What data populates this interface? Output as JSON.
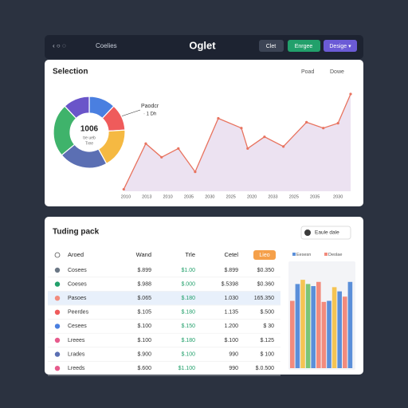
{
  "topbar": {
    "nav": "Coelies",
    "title": "Oglet",
    "buttons": [
      "Clet",
      "Enrgee",
      "Desige ▾"
    ]
  },
  "selection_card": {
    "title": "Selection",
    "actions": [
      "Poad",
      "Dowe"
    ],
    "donut": {
      "type": "pie",
      "center_label": "1006",
      "center_sublabels": [
        "tre ueb",
        "Tree"
      ],
      "values": [
        12,
        12,
        18,
        22,
        24,
        12
      ],
      "colors": [
        "#4a7fe0",
        "#ef5b5b",
        "#f5b942",
        "#5b6fb3",
        "#3fb36b",
        "#6a55c9"
      ]
    },
    "annotation": [
      "Paodcr",
      "· 1 Dh"
    ],
    "line_chart": {
      "type": "line",
      "color": "#e8735f",
      "fill": "#ece2f1",
      "x": [
        0.2,
        1.25,
        2.0,
        2.8,
        3.6,
        4.7,
        5.8,
        6.1,
        6.9,
        7.8,
        8.9,
        9.7,
        10.4,
        11
      ],
      "values": [
        2,
        49,
        35,
        44,
        20,
        75,
        65,
        44,
        56,
        46,
        71,
        65,
        70,
        100
      ],
      "xlim": [
        0,
        11
      ],
      "ylim": [
        0,
        100
      ],
      "xticks": [
        {
          "value": 0.3,
          "label": "2010"
        },
        {
          "value": 1.3,
          "label": "2013"
        },
        {
          "value": 2.3,
          "label": "2010"
        },
        {
          "value": 3.3,
          "label": "2035"
        },
        {
          "value": 4.3,
          "label": "2030"
        },
        {
          "value": 5.3,
          "label": "2025"
        },
        {
          "value": 6.3,
          "label": "2020"
        },
        {
          "value": 7.3,
          "label": "2033"
        },
        {
          "value": 8.3,
          "label": "2025"
        },
        {
          "value": 9.3,
          "label": "2035"
        },
        {
          "value": 10.4,
          "label": "2030"
        }
      ]
    }
  },
  "tracking_card": {
    "title": "Tuding pack",
    "button": "Eaule dale",
    "table": {
      "header": [
        "Aroed",
        "Wand",
        "Trle",
        "Cetel",
        "Lieo"
      ],
      "rows": [
        [
          "Cosees",
          "$.899",
          "$1.00",
          "$.899",
          "$0.350"
        ],
        [
          "Coeses",
          "$.988",
          "$.000",
          "$.5398",
          "$0.360"
        ],
        [
          "Pasoes",
          "$.065",
          "$.180",
          "1.030",
          "165.350"
        ],
        [
          "Peerdes",
          "$.105",
          "$.180",
          "1.135",
          "$.500"
        ],
        [
          "Cesees",
          "$.100",
          "$.150",
          "1.200",
          "$ 30"
        ],
        [
          "Lreees",
          "$.100",
          "$.180",
          "$.100",
          "$.125"
        ],
        [
          "Lrades",
          "$.900",
          "$.100",
          "990",
          "$ 100"
        ],
        [
          "Lreeds",
          "$.600",
          "$1.100",
          "990",
          "$.0.500"
        ]
      ]
    },
    "bar_chart": {
      "type": "bar",
      "ylim": [
        0,
        100
      ],
      "legend": [
        {
          "name": "Eesesn",
          "color": "#5b8fd9"
        },
        {
          "name": "Deolae",
          "color": "#f28b7d"
        }
      ],
      "values": [
        64,
        80,
        84,
        80,
        78,
        82,
        63,
        64,
        77,
        73,
        68,
        82
      ],
      "colors": [
        "#f28b7d",
        "#5b8fd9",
        "#f5c453",
        "#7cc576",
        "#5b8fd9",
        "#f28b7d",
        "#f28b7d",
        "#5b8fd9",
        "#f5c453",
        "#5b8fd9",
        "#f28b7d",
        "#5b8fd9"
      ]
    }
  }
}
